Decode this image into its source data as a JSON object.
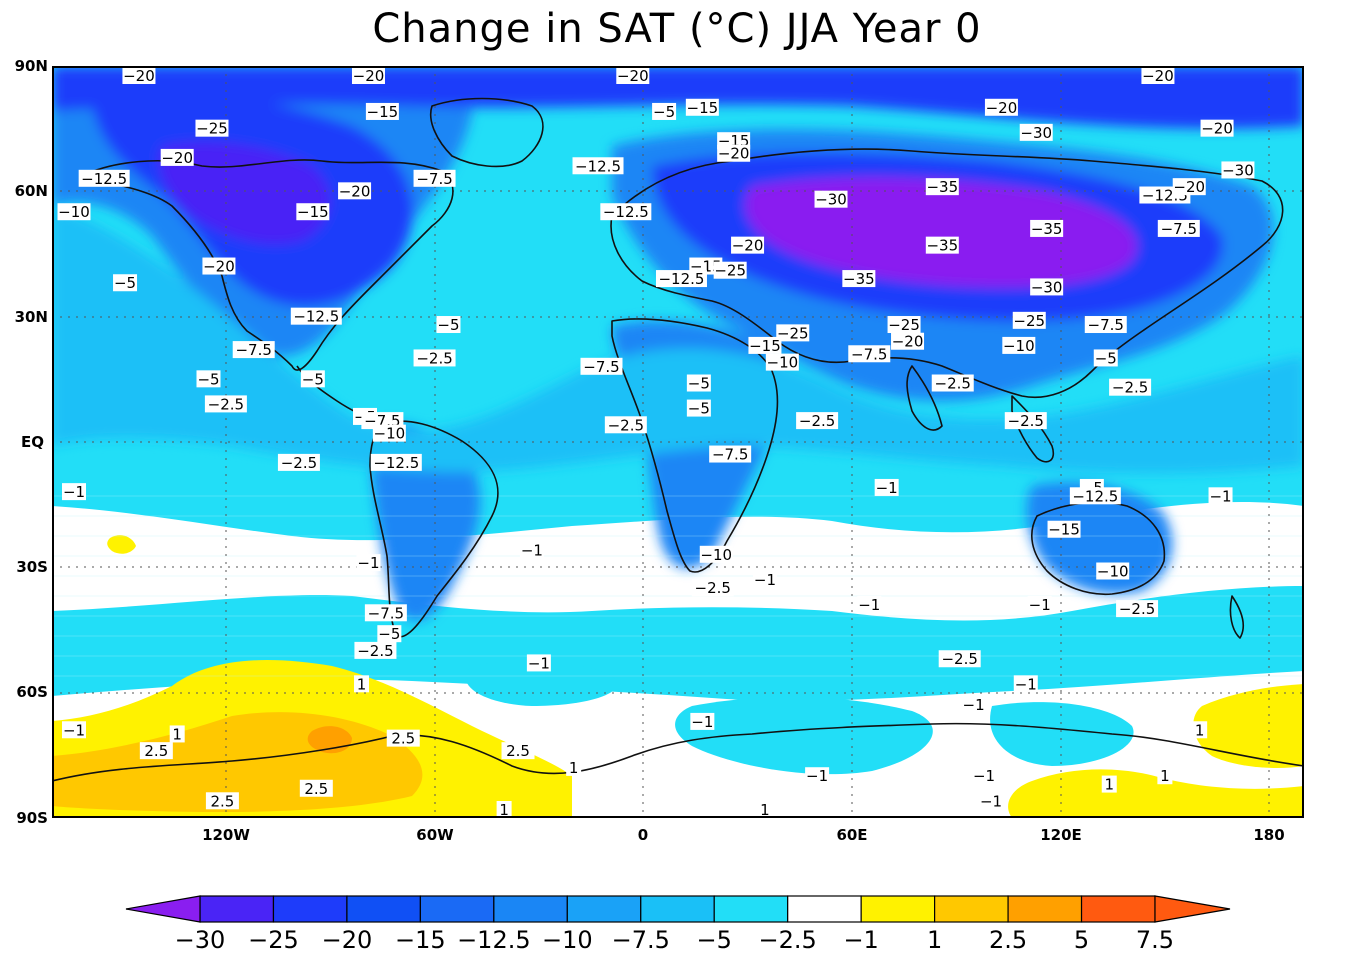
{
  "title": "Change in SAT (°C) JJA Year 0",
  "lat_labels": [
    "90N",
    "60N",
    "30N",
    "EQ",
    "30S",
    "60S",
    "90S"
  ],
  "lon_labels": [
    "120W",
    "60W",
    "0",
    "60E",
    "120E",
    "180"
  ],
  "colorbar": {
    "labels": [
      "−30",
      "−25",
      "−20",
      "−15",
      "−12.5",
      "−10",
      "−7.5",
      "−5",
      "−2.5",
      "−1",
      "1",
      "2.5",
      "5",
      "7.5"
    ],
    "colors": [
      "#8a1ef0",
      "#4a24f6",
      "#1e3cfa",
      "#1050f5",
      "#1a6af5",
      "#1a86f5",
      "#1aa2f7",
      "#1ac0f7",
      "#22def7",
      "#ffffff",
      "#fff200",
      "#ffc800",
      "#ffa000",
      "#ff5a10"
    ]
  },
  "map_colors": {
    "ocean_base": "#22def7",
    "very_cold": "#8a1ef0",
    "cold": "#1e3cfa",
    "cool": "#1a86f5",
    "mild": "#1ac0f7",
    "neutral": "#ffffff",
    "warm": "#fff200",
    "warmer": "#ffc800",
    "warmest": "#ffa000"
  },
  "contour_labels": [
    {
      "text": "−20",
      "lon": -145,
      "lat": 88
    },
    {
      "text": "−20",
      "lon": -79,
      "lat": 88
    },
    {
      "text": "−20",
      "lon": -3,
      "lat": 89
    },
    {
      "text": "−20",
      "lon": 148,
      "lat": 88
    },
    {
      "text": "−25",
      "lon": -124,
      "lat": 75
    },
    {
      "text": "−15",
      "lon": -75,
      "lat": 79
    },
    {
      "text": "−5",
      "lon": 6,
      "lat": 79
    },
    {
      "text": "−15",
      "lon": 17,
      "lat": 80
    },
    {
      "text": "−20",
      "lon": 103,
      "lat": 80
    },
    {
      "text": "−30",
      "lon": 113,
      "lat": 74
    },
    {
      "text": "−20",
      "lon": 165,
      "lat": 75
    },
    {
      "text": "−20",
      "lon": -134,
      "lat": 68
    },
    {
      "text": "−12.5",
      "lon": -155,
      "lat": 63
    },
    {
      "text": "−12.5",
      "lon": -13,
      "lat": 66
    },
    {
      "text": "−15",
      "lon": 26,
      "lat": 72
    },
    {
      "text": "−20",
      "lon": 26,
      "lat": 69
    },
    {
      "text": "−20",
      "lon": -83,
      "lat": 60
    },
    {
      "text": "−7.5",
      "lon": -60,
      "lat": 63
    },
    {
      "text": "−30",
      "lon": 54,
      "lat": 58
    },
    {
      "text": "−35",
      "lon": 86,
      "lat": 61
    },
    {
      "text": "−12.5",
      "lon": 150,
      "lat": 59
    },
    {
      "text": "−20",
      "lon": 157,
      "lat": 61
    },
    {
      "text": "−30",
      "lon": 171,
      "lat": 65
    },
    {
      "text": "−10",
      "lon": -171,
      "lat": 55
    },
    {
      "text": "−15",
      "lon": -95,
      "lat": 55
    },
    {
      "text": "−12.5",
      "lon": -5,
      "lat": 55
    },
    {
      "text": "−35",
      "lon": 116,
      "lat": 51
    },
    {
      "text": "−7.5",
      "lon": 154,
      "lat": 51
    },
    {
      "text": "−20",
      "lon": 30,
      "lat": 47
    },
    {
      "text": "−35",
      "lon": 86,
      "lat": 47
    },
    {
      "text": "−5",
      "lon": -149,
      "lat": 38
    },
    {
      "text": "−20",
      "lon": -122,
      "lat": 42
    },
    {
      "text": "−15",
      "lon": 18,
      "lat": 42
    },
    {
      "text": "−25",
      "lon": 25,
      "lat": 41
    },
    {
      "text": "−12.5",
      "lon": 11,
      "lat": 39
    },
    {
      "text": "−35",
      "lon": 62,
      "lat": 39
    },
    {
      "text": "−30",
      "lon": 116,
      "lat": 37
    },
    {
      "text": "−12.5",
      "lon": -94,
      "lat": 30
    },
    {
      "text": "−5",
      "lon": -56,
      "lat": 28
    },
    {
      "text": "−25",
      "lon": 43,
      "lat": 26
    },
    {
      "text": "−25",
      "lon": 75,
      "lat": 28
    },
    {
      "text": "−20",
      "lon": 76,
      "lat": 24
    },
    {
      "text": "−25",
      "lon": 111,
      "lat": 29
    },
    {
      "text": "−10",
      "lon": 108,
      "lat": 23
    },
    {
      "text": "−7.5",
      "lon": 133,
      "lat": 28
    },
    {
      "text": "−7.5",
      "lon": -112,
      "lat": 22
    },
    {
      "text": "−15",
      "lon": 35,
      "lat": 23
    },
    {
      "text": "−10",
      "lon": 40,
      "lat": 19
    },
    {
      "text": "−7.5",
      "lon": 65,
      "lat": 21
    },
    {
      "text": "−5",
      "lon": 133,
      "lat": 20
    },
    {
      "text": "−2.5",
      "lon": -60,
      "lat": 20
    },
    {
      "text": "−7.5",
      "lon": -12,
      "lat": 18
    },
    {
      "text": "−5",
      "lon": -125,
      "lat": 15
    },
    {
      "text": "−5",
      "lon": -95,
      "lat": 15
    },
    {
      "text": "−5",
      "lon": 16,
      "lat": 14
    },
    {
      "text": "−2.5",
      "lon": 89,
      "lat": 14
    },
    {
      "text": "−2.5",
      "lon": 140,
      "lat": 13
    },
    {
      "text": "−2.5",
      "lon": -120,
      "lat": 9
    },
    {
      "text": "−5",
      "lon": -80,
      "lat": 6
    },
    {
      "text": "−7.5",
      "lon": -75,
      "lat": 5
    },
    {
      "text": "−10",
      "lon": -73,
      "lat": 2
    },
    {
      "text": "−5",
      "lon": 16,
      "lat": 8
    },
    {
      "text": "−2.5",
      "lon": -5,
      "lat": 4
    },
    {
      "text": "−2.5",
      "lon": 50,
      "lat": 5
    },
    {
      "text": "−2.5",
      "lon": 110,
      "lat": 5
    },
    {
      "text": "−2.5",
      "lon": -99,
      "lat": -5
    },
    {
      "text": "−12.5",
      "lon": -71,
      "lat": -5
    },
    {
      "text": "−7.5",
      "lon": 25,
      "lat": -3
    },
    {
      "text": "−1",
      "lon": -174,
      "lat": -12
    },
    {
      "text": "−1",
      "lon": 70,
      "lat": -11
    },
    {
      "text": "−5",
      "lon": 129,
      "lat": -11
    },
    {
      "text": "−12.5",
      "lon": 130,
      "lat": -13
    },
    {
      "text": "−1",
      "lon": 166,
      "lat": -13
    },
    {
      "text": "−15",
      "lon": 121,
      "lat": -21
    },
    {
      "text": "−1",
      "lon": -32,
      "lat": -26
    },
    {
      "text": "−10",
      "lon": 21,
      "lat": -27
    },
    {
      "text": "−1",
      "lon": -79,
      "lat": -29
    },
    {
      "text": "−1",
      "lon": 35,
      "lat": -33
    },
    {
      "text": "−10",
      "lon": 135,
      "lat": -31
    },
    {
      "text": "−2.5",
      "lon": 20,
      "lat": -35
    },
    {
      "text": "−7.5",
      "lon": -74,
      "lat": -41
    },
    {
      "text": "−1",
      "lon": 65,
      "lat": -39
    },
    {
      "text": "−1",
      "lon": 114,
      "lat": -39
    },
    {
      "text": "−2.5",
      "lon": 142,
      "lat": -40
    },
    {
      "text": "−5",
      "lon": -73,
      "lat": -46
    },
    {
      "text": "−2.5",
      "lon": -77,
      "lat": -50
    },
    {
      "text": "−1",
      "lon": -30,
      "lat": -53
    },
    {
      "text": "−2.5",
      "lon": 91,
      "lat": -52
    },
    {
      "text": "−1",
      "lon": 110,
      "lat": -58
    },
    {
      "text": "−1",
      "lon": 95,
      "lat": -63
    },
    {
      "text": "1",
      "lon": -81,
      "lat": -58
    },
    {
      "text": "−1",
      "lon": -169,
      "lat": -69
    },
    {
      "text": "1",
      "lon": -134,
      "lat": -70
    },
    {
      "text": "−1",
      "lon": 17,
      "lat": -67
    },
    {
      "text": "2.5",
      "lon": -140,
      "lat": -74
    },
    {
      "text": "2.5",
      "lon": -69,
      "lat": -71
    },
    {
      "text": "2.5",
      "lon": -36,
      "lat": -74
    },
    {
      "text": "1",
      "lon": -20,
      "lat": -78
    },
    {
      "text": "1",
      "lon": 160,
      "lat": -69
    },
    {
      "text": "−1",
      "lon": 50,
      "lat": -80
    },
    {
      "text": "−1",
      "lon": 98,
      "lat": -80
    },
    {
      "text": "1",
      "lon": 134,
      "lat": -82
    },
    {
      "text": "1",
      "lon": 150,
      "lat": -80
    },
    {
      "text": "2.5",
      "lon": -121,
      "lat": -86
    },
    {
      "text": "2.5",
      "lon": -94,
      "lat": -83
    },
    {
      "text": "1",
      "lon": -40,
      "lat": -89
    },
    {
      "text": "1",
      "lon": 35,
      "lat": -90
    },
    {
      "text": "−1",
      "lon": 100,
      "lat": -86
    }
  ]
}
